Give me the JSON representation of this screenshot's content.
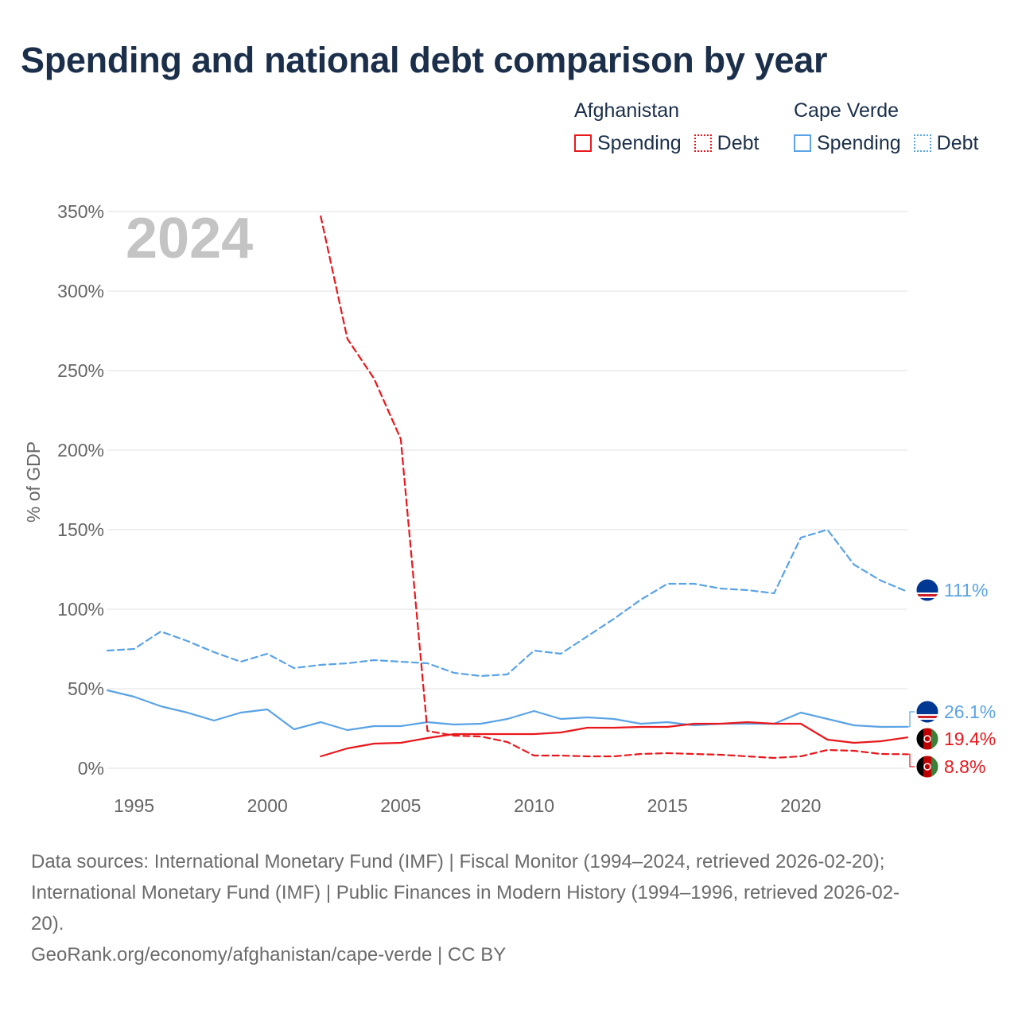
{
  "title": "Spending and national debt comparison by year",
  "legend": {
    "groups": [
      {
        "name": "Afghanistan",
        "color": "#e8181c",
        "items": [
          {
            "label": "Spending",
            "style": "solid"
          },
          {
            "label": "Debt",
            "style": "dotted"
          }
        ]
      },
      {
        "name": "Cape Verde",
        "color": "#5aa3e6",
        "items": [
          {
            "label": "Spending",
            "style": "solid"
          },
          {
            "label": "Debt",
            "style": "dotted"
          }
        ]
      }
    ]
  },
  "footer": {
    "sources_line1": "Data sources: International Monetary Fund (IMF) | Fiscal Monitor (1994–2024, retrieved 2026-02-20);",
    "sources_line2": "International Monetary Fund (IMF) | Public Finances in Modern History (1994–1996, retrieved 2026-02-",
    "sources_line3": "20).",
    "credit": "GeoRank.org/economy/afghanistan/cape-verde | CC BY"
  },
  "chart_data": {
    "type": "line",
    "title": "Spending and national debt comparison by year",
    "ylabel": "% of GDP",
    "xlabel": "",
    "year_watermark": "2024",
    "xlim": [
      1994,
      2024
    ],
    "ylim": [
      0,
      350
    ],
    "y_ticks": [
      0,
      50,
      100,
      150,
      200,
      250,
      300,
      350
    ],
    "y_tick_labels": [
      "0%",
      "50%",
      "100%",
      "150%",
      "200%",
      "250%",
      "300%",
      "350%"
    ],
    "x_ticks": [
      1995,
      2000,
      2005,
      2010,
      2015,
      2020
    ],
    "x_tick_labels": [
      "1995",
      "2000",
      "2005",
      "2010",
      "2015",
      "2020"
    ],
    "grid": true,
    "series": [
      {
        "name": "Cape Verde Debt",
        "country": "Cape Verde",
        "metric": "Debt",
        "color": "#5aa3e6",
        "dashed": true,
        "x": [
          1994,
          1995,
          1996,
          1997,
          1998,
          1999,
          2000,
          2001,
          2002,
          2003,
          2004,
          2005,
          2006,
          2007,
          2008,
          2009,
          2010,
          2011,
          2012,
          2013,
          2014,
          2015,
          2016,
          2017,
          2018,
          2019,
          2020,
          2021,
          2022,
          2023,
          2024
        ],
        "values": [
          74,
          75,
          86,
          80,
          73,
          67,
          72,
          63,
          65,
          66,
          68,
          67,
          66,
          60,
          58,
          59,
          74,
          72,
          83,
          94,
          106,
          116,
          116,
          113,
          112,
          110,
          145,
          150,
          128,
          118,
          111
        ],
        "end_label": "111%"
      },
      {
        "name": "Cape Verde Spending",
        "country": "Cape Verde",
        "metric": "Spending",
        "color": "#5aa3e6",
        "dashed": false,
        "x": [
          1994,
          1995,
          1996,
          1997,
          1998,
          1999,
          2000,
          2001,
          2002,
          2003,
          2004,
          2005,
          2006,
          2007,
          2008,
          2009,
          2010,
          2011,
          2012,
          2013,
          2014,
          2015,
          2016,
          2017,
          2018,
          2019,
          2020,
          2021,
          2022,
          2023,
          2024
        ],
        "values": [
          49,
          45,
          39,
          35,
          30,
          35,
          37,
          24.5,
          29,
          24,
          26.5,
          26.5,
          29,
          27.5,
          28,
          31,
          36,
          31,
          32,
          31,
          28,
          29,
          27,
          28,
          28,
          28,
          35,
          31,
          27,
          26,
          26.1
        ],
        "end_label": "26.1%"
      },
      {
        "name": "Afghanistan Spending",
        "country": "Afghanistan",
        "metric": "Spending",
        "color": "#e8181c",
        "dashed": false,
        "x": [
          2002,
          2003,
          2004,
          2005,
          2006,
          2007,
          2008,
          2009,
          2010,
          2011,
          2012,
          2013,
          2014,
          2015,
          2016,
          2017,
          2018,
          2019,
          2020,
          2021,
          2022,
          2023,
          2024
        ],
        "values": [
          7.5,
          12.5,
          15.5,
          16,
          19,
          21.5,
          21.5,
          21.5,
          21.5,
          22.5,
          25.5,
          25.5,
          26,
          26,
          28,
          28,
          29,
          28,
          28,
          18,
          16,
          17,
          19.4
        ],
        "end_label": "19.4%"
      },
      {
        "name": "Afghanistan Debt",
        "country": "Afghanistan",
        "metric": "Debt",
        "color": "#e8181c",
        "dashed": true,
        "x": [
          2002,
          2003,
          2004,
          2005,
          2006,
          2007,
          2008,
          2009,
          2010,
          2011,
          2012,
          2013,
          2014,
          2015,
          2016,
          2017,
          2018,
          2019,
          2020,
          2021,
          2022,
          2023,
          2024
        ],
        "values": [
          347,
          270,
          245,
          207,
          23.5,
          20.5,
          20,
          16.5,
          8,
          8,
          7.5,
          7.5,
          9,
          9.5,
          9,
          8.5,
          7.5,
          6.5,
          7.5,
          11.5,
          11,
          9,
          8.8
        ],
        "end_label": "8.8%"
      }
    ]
  }
}
